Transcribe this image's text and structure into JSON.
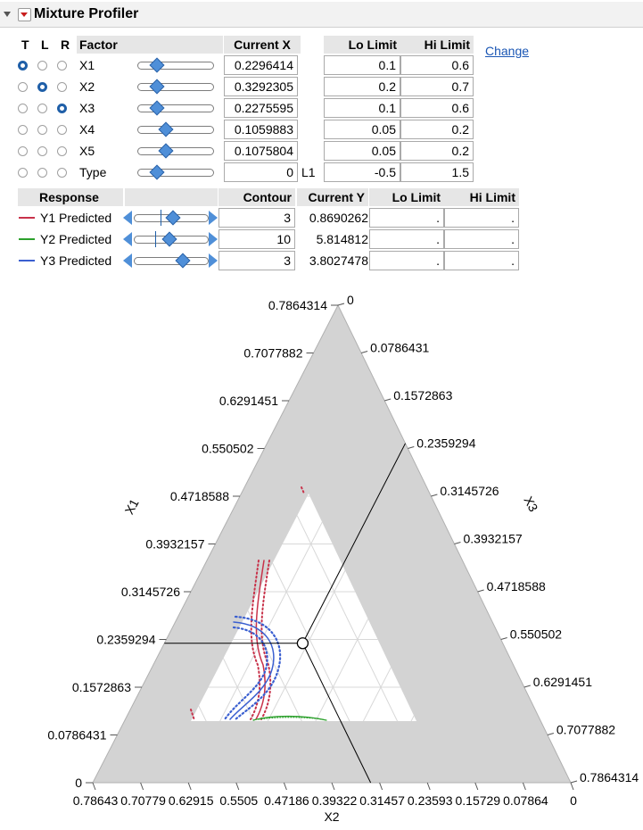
{
  "title": "Mixture Profiler",
  "factor_table": {
    "headers": {
      "t": "T",
      "l": "L",
      "r": "R",
      "factor": "Factor",
      "current_x": "Current X",
      "lo_limit": "Lo Limit",
      "hi_limit": "Hi Limit"
    },
    "change_link": "Change",
    "rows": [
      {
        "name": "X1",
        "current": "0.2296414",
        "lo": "0.1",
        "hi": "0.6",
        "t": true,
        "l": false,
        "r": false
      },
      {
        "name": "X2",
        "current": "0.3292305",
        "lo": "0.2",
        "hi": "0.7",
        "t": false,
        "l": true,
        "r": false
      },
      {
        "name": "X3",
        "current": "0.2275595",
        "lo": "0.1",
        "hi": "0.6",
        "t": false,
        "l": false,
        "r": true
      },
      {
        "name": "X4",
        "current": "0.1059883",
        "lo": "0.05",
        "hi": "0.2",
        "t": false,
        "l": false,
        "r": false
      },
      {
        "name": "X5",
        "current": "0.1075804",
        "lo": "0.05",
        "hi": "0.2",
        "t": false,
        "l": false,
        "r": false
      },
      {
        "name": "Type",
        "current": "0",
        "unit": "L1",
        "lo": "-0.5",
        "hi": "1.5",
        "t": false,
        "l": false,
        "r": false
      }
    ]
  },
  "response_table": {
    "headers": {
      "response": "Response",
      "contour": "Contour",
      "current_y": "Current Y",
      "lo_limit": "Lo Limit",
      "hi_limit": "Hi Limit"
    },
    "rows": [
      {
        "name": "Y1 Predicted",
        "color": "#c8324a",
        "contour": "3",
        "current": "0.8690262",
        "lo": ".",
        "hi": "."
      },
      {
        "name": "Y2 Predicted",
        "color": "#2ca02c",
        "contour": "10",
        "current": "5.814812",
        "lo": ".",
        "hi": "."
      },
      {
        "name": "Y3 Predicted",
        "color": "#3a5fd0",
        "contour": "3",
        "current": "3.8027478",
        "lo": ".",
        "hi": "."
      }
    ]
  },
  "ternary": {
    "axis_labels": {
      "left": "X1",
      "right": "X3",
      "bottom": "X2"
    },
    "left_ticks": [
      "0",
      "0.0786431",
      "0.1572863",
      "0.2359294",
      "0.3145726",
      "0.3932157",
      "0.4718588",
      "0.550502",
      "0.6291451",
      "0.7077882",
      "0.7864314"
    ],
    "right_ticks": [
      "0",
      "0.0786431",
      "0.1572863",
      "0.2359294",
      "0.3145726",
      "0.3932157",
      "0.4718588",
      "0.550502",
      "0.6291451",
      "0.7077882",
      "0.7864314"
    ],
    "bottom_ticks": [
      "0.78643",
      "0.70779",
      "0.62915",
      "0.5505",
      "0.47186",
      "0.39322",
      "0.31457",
      "0.23593",
      "0.15729",
      "0.07864",
      "0"
    ],
    "current_point": {
      "x1": 0.2296414,
      "x3": 0.2275595
    }
  }
}
